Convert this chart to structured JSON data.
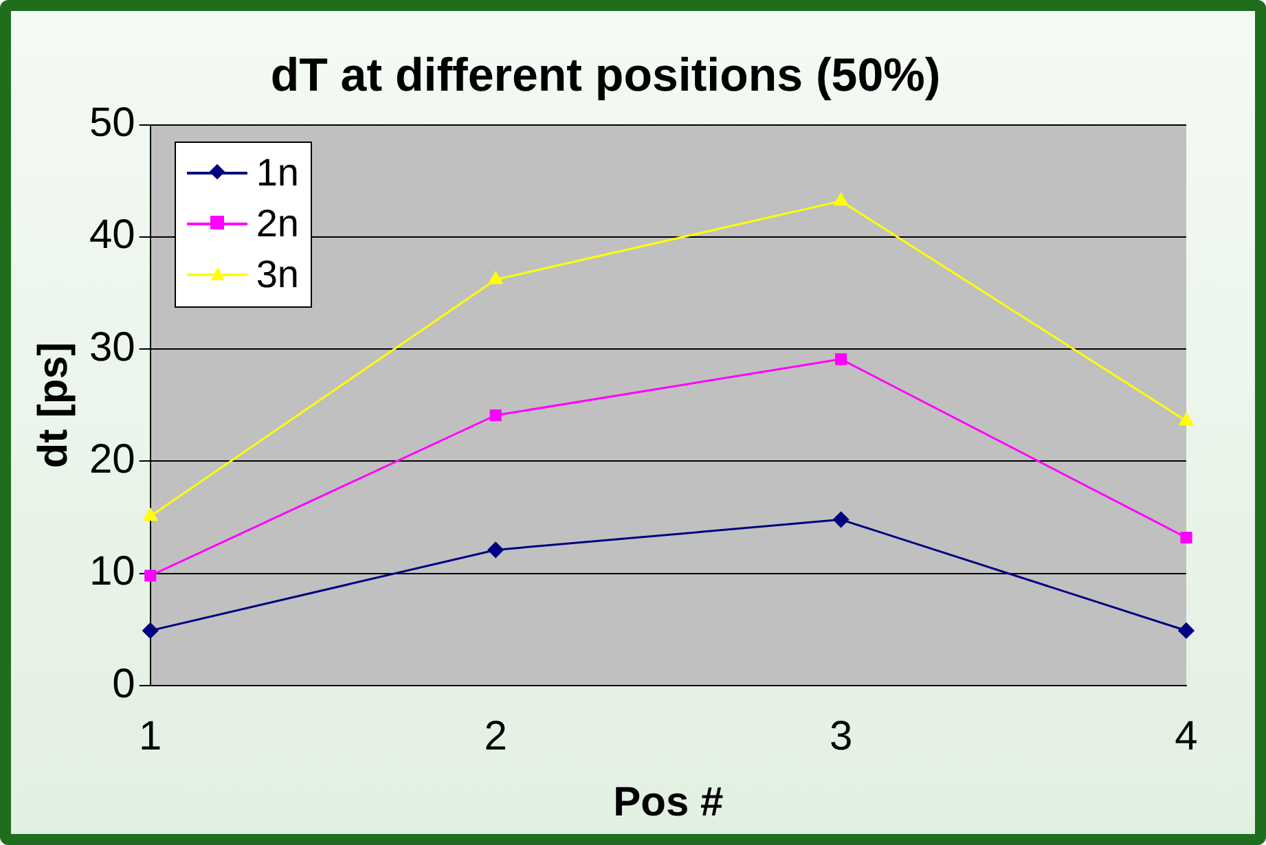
{
  "chart_data": {
    "type": "line",
    "title": "dT at different positions (50%)",
    "xlabel": "Pos #",
    "ylabel": "dt [ps]",
    "categories": [
      "1",
      "2",
      "3",
      "4"
    ],
    "series": [
      {
        "name": "1n",
        "color": "#000080",
        "marker": "diamond",
        "values": [
          4.9,
          12.1,
          14.8,
          4.9
        ]
      },
      {
        "name": "2n",
        "color": "#ff00ff",
        "marker": "square",
        "values": [
          9.8,
          24.1,
          29.1,
          13.2
        ]
      },
      {
        "name": "3n",
        "color": "#ffff00",
        "marker": "triangle",
        "values": [
          15.1,
          36.2,
          43.2,
          23.6
        ]
      }
    ],
    "ylim": [
      0,
      50
    ],
    "yticks": [
      0,
      10,
      20,
      30,
      40,
      50
    ],
    "grid": "y",
    "legend": "top left",
    "line_style": "solid"
  }
}
